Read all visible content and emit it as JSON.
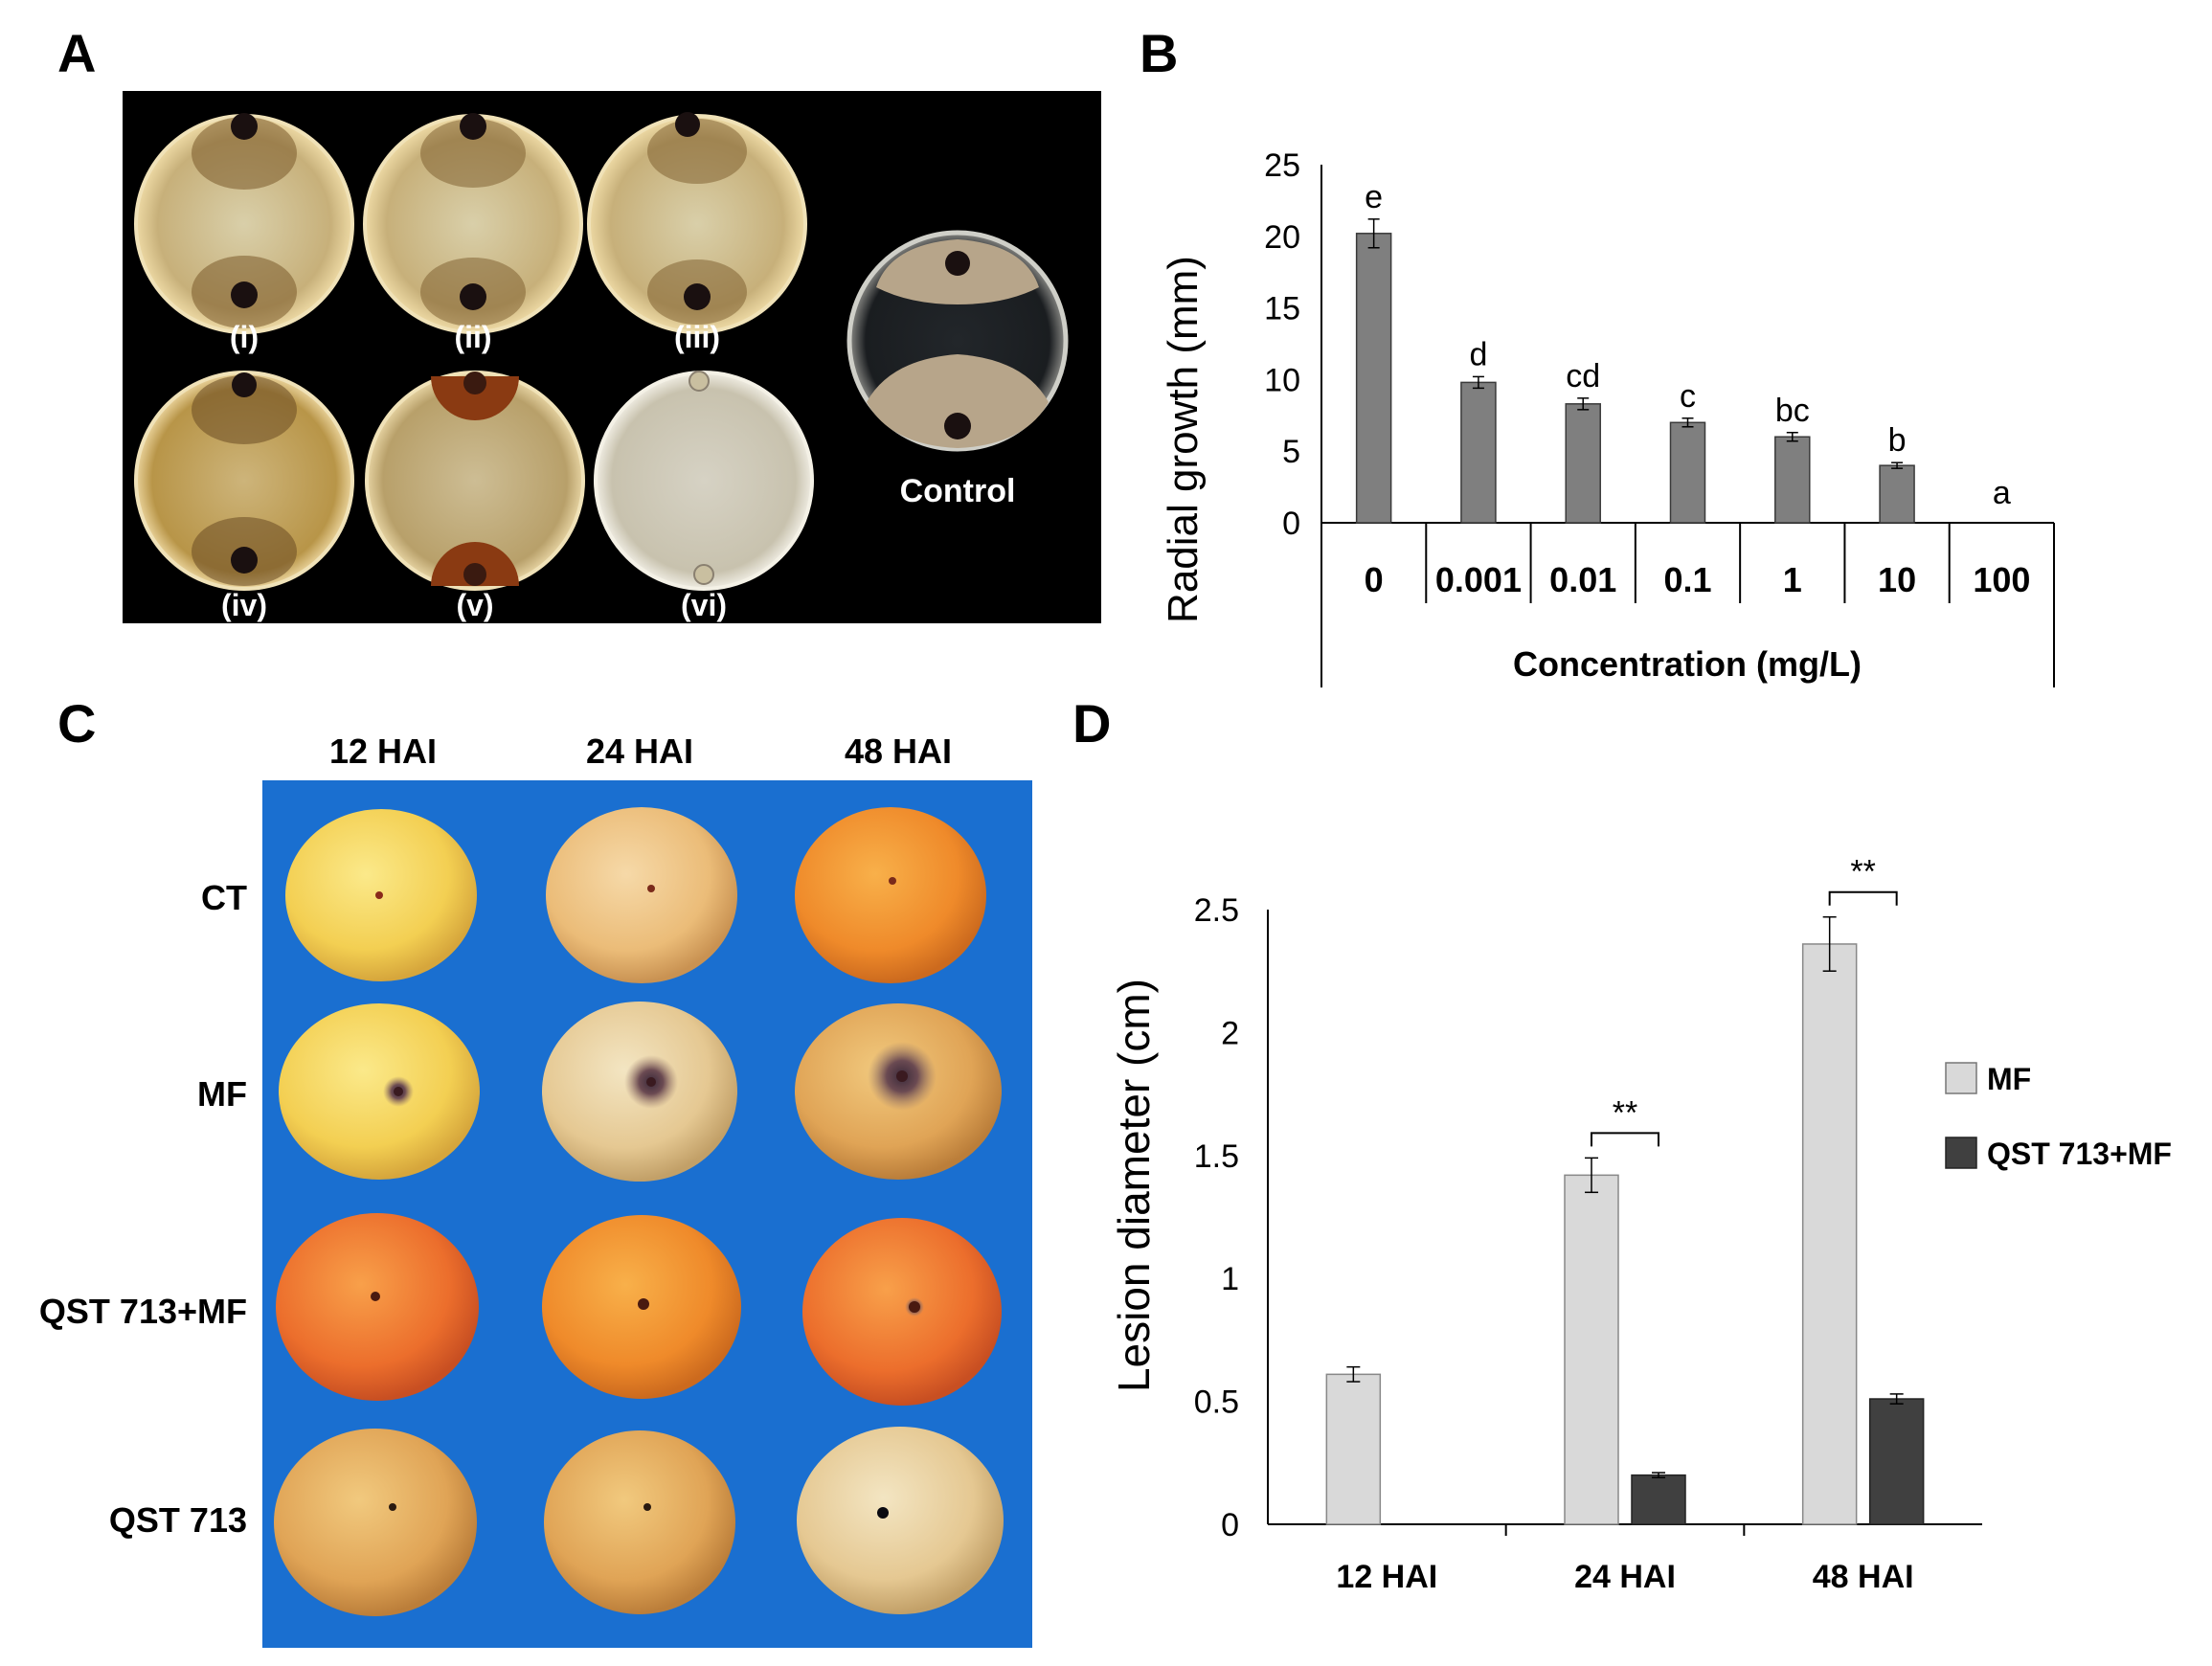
{
  "panels": {
    "a": {
      "letter": "A",
      "plates": [
        {
          "label": "(i)"
        },
        {
          "label": "(ii)"
        },
        {
          "label": "(iii)"
        },
        {
          "label": "(iv)"
        },
        {
          "label": "(v)"
        },
        {
          "label": "(vi)"
        }
      ],
      "control_label": "Control"
    },
    "b": {
      "letter": "B"
    },
    "c": {
      "letter": "C",
      "columns": [
        "12 HAI",
        "24 HAI",
        "48 HAI"
      ],
      "rows": [
        "CT",
        "MF",
        "QST 713+MF",
        "QST 713"
      ]
    },
    "d": {
      "letter": "D"
    }
  },
  "chart_data": [
    {
      "id": "B",
      "type": "bar",
      "title": "",
      "xlabel": "Concentration (mg/L)",
      "ylabel": "Radial growth (mm)",
      "ylim": [
        0,
        25
      ],
      "yticks": [
        "0",
        "5",
        "10",
        "15",
        "20",
        "25"
      ],
      "categories": [
        "0",
        "0.001",
        "0.01",
        "0.1",
        "1",
        "10",
        "100"
      ],
      "values": [
        20.2,
        9.8,
        8.3,
        7.0,
        6.0,
        4.0,
        0
      ],
      "errors": [
        1.0,
        0.4,
        0.4,
        0.3,
        0.3,
        0.2,
        0
      ],
      "letters": [
        "e",
        "d",
        "cd",
        "c",
        "bc",
        "b",
        "a"
      ],
      "color": "#7f7f7f"
    },
    {
      "id": "D",
      "type": "bar",
      "title": "",
      "xlabel": "",
      "ylabel": "Lesion diameter (cm)",
      "ylim": [
        0,
        2.5
      ],
      "yticks": [
        "0",
        "0.5",
        "1",
        "1.5",
        "2",
        "2.5"
      ],
      "categories": [
        "12 HAI",
        "24 HAI",
        "48 HAI"
      ],
      "series": [
        {
          "name": "MF",
          "values": [
            0.61,
            1.42,
            2.36
          ],
          "errors": [
            0.03,
            0.07,
            0.11
          ],
          "color": "#d9d9d9"
        },
        {
          "name": "QST 713+MF",
          "values": [
            0,
            0.2,
            0.51
          ],
          "errors": [
            0,
            0.01,
            0.02
          ],
          "color": "#404040"
        }
      ],
      "significance": [
        {
          "category": "24 HAI",
          "label": "**"
        },
        {
          "category": "48 HAI",
          "label": "**"
        }
      ],
      "legend_position": "right"
    }
  ]
}
